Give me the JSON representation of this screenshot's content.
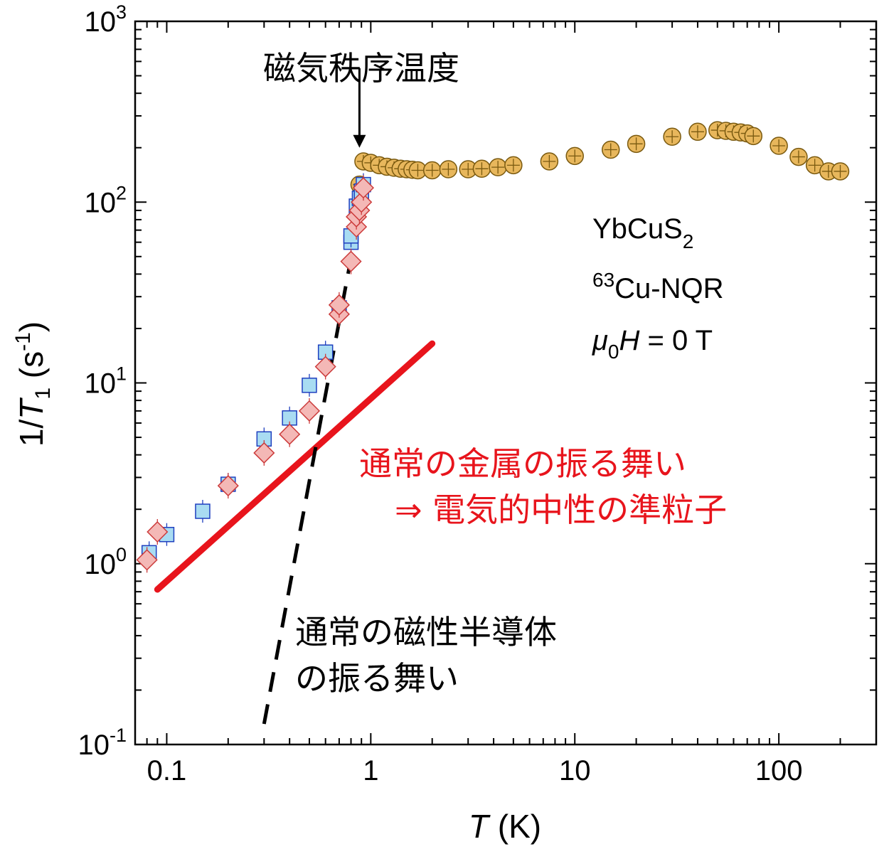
{
  "chart_data": {
    "type": "scatter",
    "x_scale": "log",
    "y_scale": "log",
    "xlim": [
      0.07,
      300
    ],
    "ylim": [
      0.1,
      1000
    ],
    "xlabel_italic": "T",
    "xlabel_rest": " (K)",
    "ylabel": {
      "pre": "1/",
      "italic": "T",
      "sub": "1",
      "mid": " (s",
      "sup": "-1",
      "post": ")"
    },
    "x_ticks": [
      {
        "value": 0.1,
        "label": "0.1"
      },
      {
        "value": 1,
        "label": "1"
      },
      {
        "value": 10,
        "label": "10"
      },
      {
        "value": 100,
        "label": "100"
      }
    ],
    "y_ticks": [
      {
        "value": 0.1,
        "base": "10",
        "exp": "-1"
      },
      {
        "value": 1,
        "base": "10",
        "exp": "0"
      },
      {
        "value": 10,
        "base": "10",
        "exp": "1"
      },
      {
        "value": 100,
        "base": "10",
        "exp": "2"
      },
      {
        "value": 1000,
        "base": "10",
        "exp": "3"
      }
    ],
    "series": [
      {
        "marker": "circle",
        "color": "#e8b75c",
        "stroke": "#7a5a10",
        "points": [
          [
            0.88,
            125
          ],
          [
            0.92,
            168
          ],
          [
            1.0,
            165
          ],
          [
            1.1,
            160
          ],
          [
            1.2,
            157
          ],
          [
            1.3,
            155
          ],
          [
            1.4,
            153
          ],
          [
            1.5,
            152
          ],
          [
            1.6,
            151
          ],
          [
            1.7,
            150
          ],
          [
            2.0,
            150
          ],
          [
            2.4,
            152
          ],
          [
            3.0,
            152
          ],
          [
            3.5,
            153
          ],
          [
            4.2,
            156
          ],
          [
            5.0,
            160
          ],
          [
            7.5,
            168
          ],
          [
            10,
            180
          ],
          [
            15,
            195
          ],
          [
            20,
            210
          ],
          [
            30,
            230
          ],
          [
            40,
            245
          ],
          [
            50,
            250
          ],
          [
            55,
            248
          ],
          [
            60,
            245
          ],
          [
            65,
            243
          ],
          [
            70,
            240
          ],
          [
            75,
            232
          ],
          [
            100,
            205
          ],
          [
            125,
            178
          ],
          [
            150,
            160
          ],
          [
            175,
            148
          ],
          [
            200,
            148
          ]
        ]
      },
      {
        "marker": "square",
        "color": "#a9dcf2",
        "stroke": "#1e3fbf",
        "points": [
          [
            0.082,
            1.15
          ],
          [
            0.1,
            1.45
          ],
          [
            0.15,
            1.95
          ],
          [
            0.2,
            2.75
          ],
          [
            0.3,
            4.9
          ],
          [
            0.4,
            6.4
          ],
          [
            0.5,
            9.7
          ],
          [
            0.6,
            14.8
          ],
          [
            0.7,
            26
          ],
          [
            0.8,
            60
          ],
          [
            0.8,
            65
          ],
          [
            0.85,
            95
          ],
          [
            0.88,
            105
          ],
          [
            0.9,
            115
          ],
          [
            0.92,
            125
          ]
        ]
      },
      {
        "marker": "diamond",
        "color": "#f4b8b6",
        "stroke": "#cc3a3a",
        "points": [
          [
            0.08,
            1.05
          ],
          [
            0.09,
            1.5
          ],
          [
            0.2,
            2.7
          ],
          [
            0.3,
            4.1
          ],
          [
            0.4,
            5.2
          ],
          [
            0.5,
            7.0
          ],
          [
            0.6,
            12.3
          ],
          [
            0.7,
            24
          ],
          [
            0.7,
            27
          ],
          [
            0.8,
            47
          ],
          [
            0.85,
            73
          ],
          [
            0.85,
            83
          ],
          [
            0.88,
            90
          ],
          [
            0.9,
            100
          ],
          [
            0.92,
            120
          ]
        ]
      }
    ],
    "lines": [
      {
        "style": "solid",
        "color": "#e8141c",
        "from": [
          0.09,
          0.72
        ],
        "to": [
          2.0,
          16.5
        ]
      },
      {
        "style": "dashed",
        "color": "#000000",
        "from": [
          0.3,
          0.13
        ],
        "to": [
          0.9,
          100
        ]
      }
    ],
    "arrow": {
      "x": 0.88,
      "y_from": 550,
      "y_to": 200
    },
    "annotations": {
      "transition_label": "磁気秩序温度",
      "metal_line1": "通常の金属の振る舞い",
      "metal_line2": "⇒ 電気的中性の準粒子",
      "semi_line1": "通常の磁性半導体",
      "semi_line2": "の振る舞い"
    },
    "info": {
      "compound_base": "YbCuS",
      "compound_sub": "2",
      "nqr_sup": "63",
      "nqr_rest": "Cu-NQR",
      "field_mu": "μ",
      "field_sub": "0",
      "field_H": "H",
      "field_rest": " = 0 T"
    }
  }
}
